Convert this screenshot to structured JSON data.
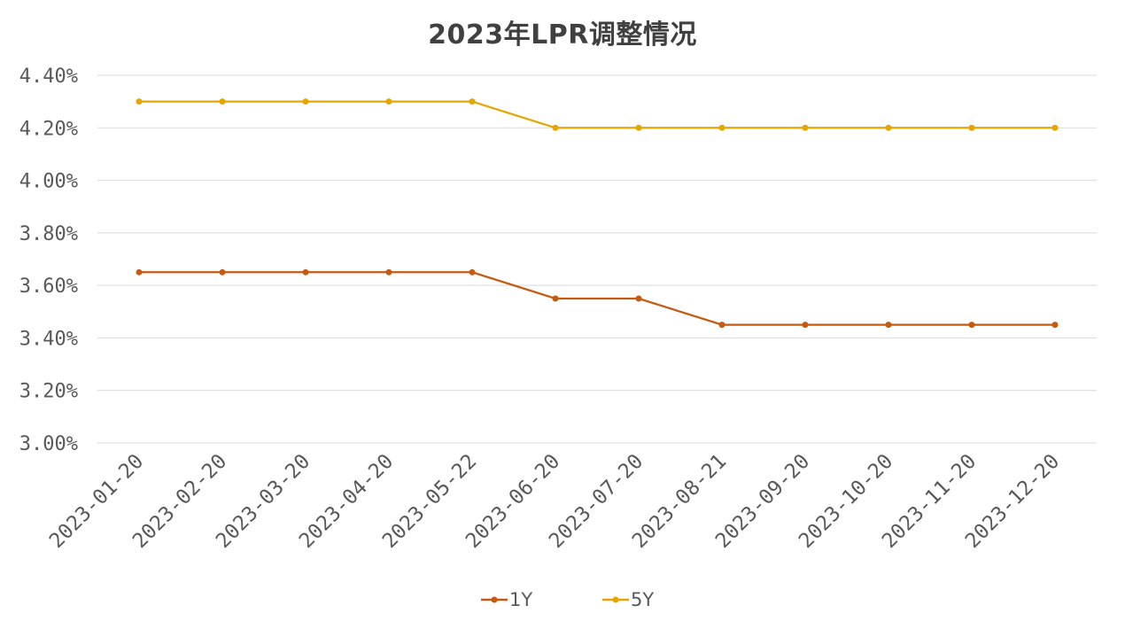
{
  "chart_data": {
    "type": "line",
    "title": "2023年LPR调整情况",
    "xlabel": "",
    "ylabel": "",
    "x": [
      "2023-01-20",
      "2023-02-20",
      "2023-03-20",
      "2023-04-20",
      "2023-05-22",
      "2023-06-20",
      "2023-07-20",
      "2023-08-21",
      "2023-09-20",
      "2023-10-20",
      "2023-11-20",
      "2023-12-20"
    ],
    "ylim": [
      3.0,
      4.4
    ],
    "yticks": [
      "3.00%",
      "3.20%",
      "3.40%",
      "3.60%",
      "3.80%",
      "4.00%",
      "4.20%",
      "4.40%"
    ],
    "grid": true,
    "legend_position": "bottom",
    "series": [
      {
        "name": "1Y",
        "color": "#C55A11",
        "values": [
          3.65,
          3.65,
          3.65,
          3.65,
          3.65,
          3.55,
          3.55,
          3.45,
          3.45,
          3.45,
          3.45,
          3.45
        ]
      },
      {
        "name": "5Y",
        "color": "#E6A600",
        "values": [
          4.3,
          4.3,
          4.3,
          4.3,
          4.3,
          4.2,
          4.2,
          4.2,
          4.2,
          4.2,
          4.2,
          4.2
        ]
      }
    ]
  }
}
